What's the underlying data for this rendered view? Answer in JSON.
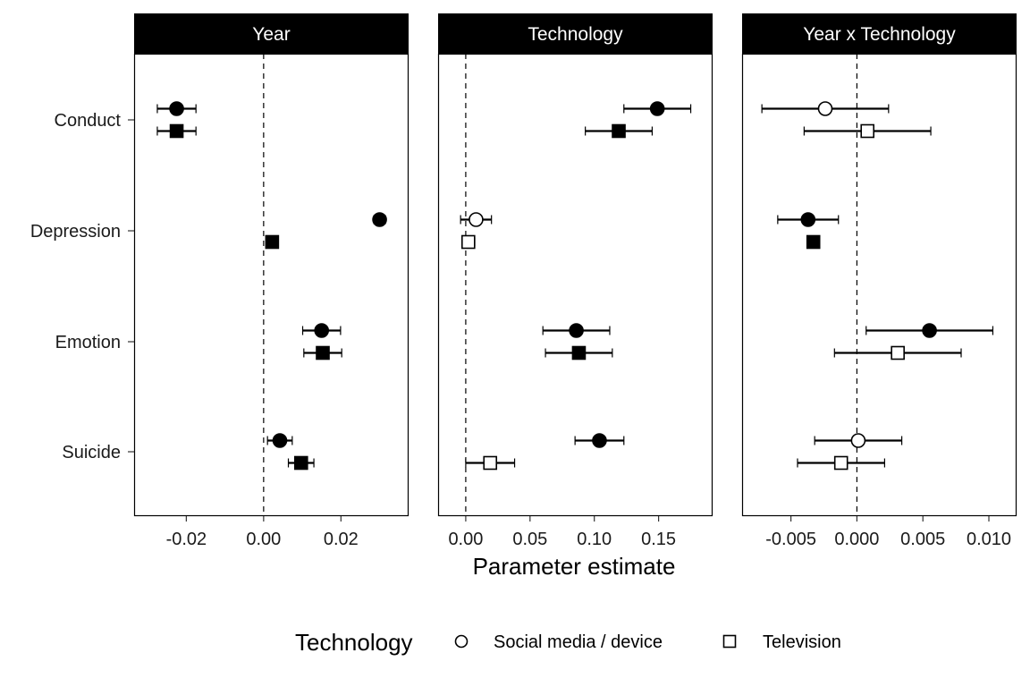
{
  "chart_data": {
    "type": "scatter",
    "subtype": "forest-plot-faceted",
    "xlabel": "Parameter estimate",
    "ylabel": "",
    "categories": [
      "Conduct",
      "Depression",
      "Emotion",
      "Suicide"
    ],
    "reference_line": 0,
    "grid": false,
    "legend": {
      "title": "Technology",
      "position": "bottom",
      "entries": [
        {
          "label": "Social media / device",
          "shape": "circle"
        },
        {
          "label": "Television",
          "shape": "square"
        }
      ]
    },
    "fill_note": "filled marker = confidence interval excludes zero; open marker = includes zero",
    "panels": [
      {
        "title": "Year",
        "xlim": [
          -0.0335,
          0.0375
        ],
        "ticks": [
          -0.02,
          0.0,
          0.02
        ],
        "tick_labels": [
          "-0.02",
          "0.00",
          "0.02"
        ],
        "series": [
          {
            "name": "Social media / device",
            "shape": "circle",
            "points": [
              {
                "category": "Conduct",
                "estimate": -0.0225,
                "lower": -0.0275,
                "upper": -0.0175,
                "filled": true
              },
              {
                "category": "Depression",
                "estimate": 0.03,
                "lower": 0.0285,
                "upper": 0.0315,
                "filled": true
              },
              {
                "category": "Emotion",
                "estimate": 0.015,
                "lower": 0.0101,
                "upper": 0.0199,
                "filled": true
              },
              {
                "category": "Suicide",
                "estimate": 0.0042,
                "lower": 0.001,
                "upper": 0.0074,
                "filled": true
              }
            ]
          },
          {
            "name": "Television",
            "shape": "square",
            "points": [
              {
                "category": "Conduct",
                "estimate": -0.0225,
                "lower": -0.0275,
                "upper": -0.0175,
                "filled": true
              },
              {
                "category": "Depression",
                "estimate": 0.0022,
                "lower": 0.0016,
                "upper": 0.0028,
                "filled": true
              },
              {
                "category": "Emotion",
                "estimate": 0.0153,
                "lower": 0.0104,
                "upper": 0.0202,
                "filled": true
              },
              {
                "category": "Suicide",
                "estimate": 0.0097,
                "lower": 0.0064,
                "upper": 0.013,
                "filled": true
              }
            ]
          }
        ]
      },
      {
        "title": "Technology",
        "xlim": [
          -0.0215,
          0.192
        ],
        "ticks": [
          0.0,
          0.05,
          0.1,
          0.15
        ],
        "tick_labels": [
          "0.00",
          "0.05",
          "0.10",
          "0.15"
        ],
        "series": [
          {
            "name": "Social media / device",
            "shape": "circle",
            "points": [
              {
                "category": "Conduct",
                "estimate": 0.149,
                "lower": 0.123,
                "upper": 0.175,
                "filled": true
              },
              {
                "category": "Depression",
                "estimate": 0.008,
                "lower": -0.004,
                "upper": 0.02,
                "filled": false
              },
              {
                "category": "Emotion",
                "estimate": 0.086,
                "lower": 0.06,
                "upper": 0.112,
                "filled": true
              },
              {
                "category": "Suicide",
                "estimate": 0.104,
                "lower": 0.085,
                "upper": 0.123,
                "filled": true
              }
            ]
          },
          {
            "name": "Television",
            "shape": "square",
            "points": [
              {
                "category": "Conduct",
                "estimate": 0.119,
                "lower": 0.093,
                "upper": 0.145,
                "filled": true
              },
              {
                "category": "Depression",
                "estimate": 0.002,
                "lower": -0.003,
                "upper": 0.007,
                "filled": false
              },
              {
                "category": "Emotion",
                "estimate": 0.088,
                "lower": 0.062,
                "upper": 0.114,
                "filled": true
              },
              {
                "category": "Suicide",
                "estimate": 0.019,
                "lower": 0.0,
                "upper": 0.038,
                "filled": false
              }
            ]
          }
        ]
      },
      {
        "title": "Year x Technology",
        "xlim": [
          -0.0087,
          0.0121
        ],
        "ticks": [
          -0.005,
          0.0,
          0.005,
          0.01
        ],
        "tick_labels": [
          "-0.005",
          "0.000",
          "0.005",
          "0.010"
        ],
        "series": [
          {
            "name": "Social media / device",
            "shape": "circle",
            "points": [
              {
                "category": "Conduct",
                "estimate": -0.0024,
                "lower": -0.0072,
                "upper": 0.0024,
                "filled": false
              },
              {
                "category": "Depression",
                "estimate": -0.0037,
                "lower": -0.006,
                "upper": -0.0014,
                "filled": true
              },
              {
                "category": "Emotion",
                "estimate": 0.0055,
                "lower": 0.0007,
                "upper": 0.0103,
                "filled": true
              },
              {
                "category": "Suicide",
                "estimate": 0.0001,
                "lower": -0.0032,
                "upper": 0.0034,
                "filled": false
              }
            ]
          },
          {
            "name": "Television",
            "shape": "square",
            "points": [
              {
                "category": "Conduct",
                "estimate": 0.0008,
                "lower": -0.004,
                "upper": 0.0056,
                "filled": false
              },
              {
                "category": "Depression",
                "estimate": -0.0033,
                "lower": -0.0036,
                "upper": -0.003,
                "filled": true
              },
              {
                "category": "Emotion",
                "estimate": 0.0031,
                "lower": -0.0017,
                "upper": 0.0079,
                "filled": false
              },
              {
                "category": "Suicide",
                "estimate": -0.0012,
                "lower": -0.0045,
                "upper": 0.0021,
                "filled": false
              }
            ]
          }
        ]
      }
    ]
  }
}
